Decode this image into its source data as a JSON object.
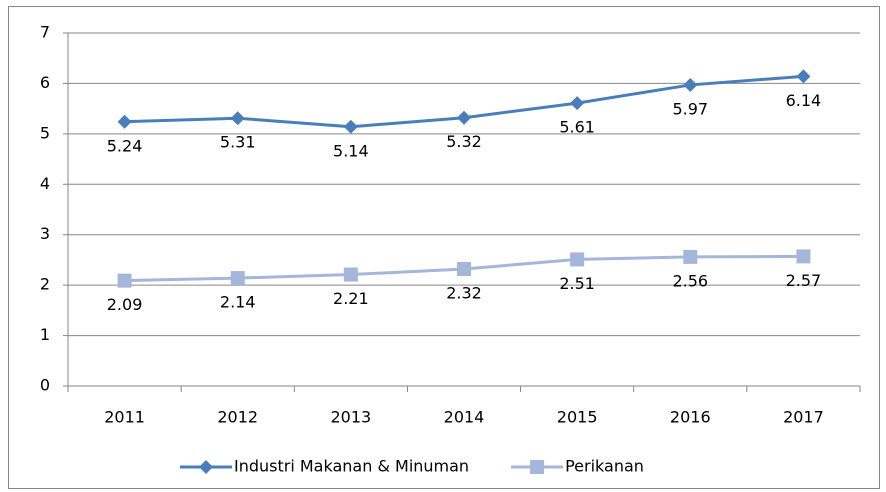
{
  "chart_data": {
    "type": "line",
    "categories": [
      "2011",
      "2012",
      "2013",
      "2014",
      "2015",
      "2016",
      "2017"
    ],
    "series": [
      {
        "name": "Industri Makanan & Minuman",
        "color": "#4a7ebb",
        "marker": "diamond",
        "values": [
          5.24,
          5.31,
          5.14,
          5.32,
          5.61,
          5.97,
          6.14
        ]
      },
      {
        "name": "Perikanan",
        "color": "#a5b6db",
        "marker": "square",
        "values": [
          2.09,
          2.14,
          2.21,
          2.32,
          2.51,
          2.56,
          2.57
        ]
      }
    ],
    "ylim": [
      0,
      7
    ],
    "yticks": [
      0,
      1,
      2,
      3,
      4,
      5,
      6,
      7
    ],
    "grid": true,
    "legend": "bottom",
    "data_labels": true
  }
}
